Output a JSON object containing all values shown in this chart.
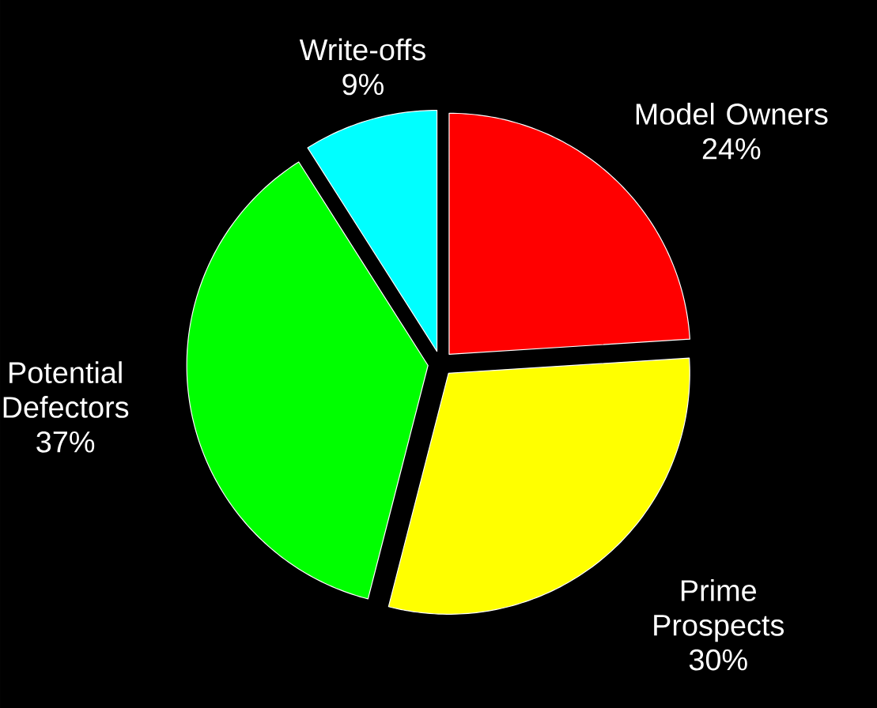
{
  "chart_data": {
    "type": "pie",
    "categories": [
      "Model Owners",
      "Prime Prospects",
      "Potential Defectors",
      "Write-offs"
    ],
    "values": [
      24,
      30,
      37,
      9
    ],
    "colors": [
      "#ff0000",
      "#ffff00",
      "#00ff00",
      "#00ffff"
    ],
    "value_labels": [
      "24%",
      "30%",
      "37%",
      "9%"
    ]
  }
}
